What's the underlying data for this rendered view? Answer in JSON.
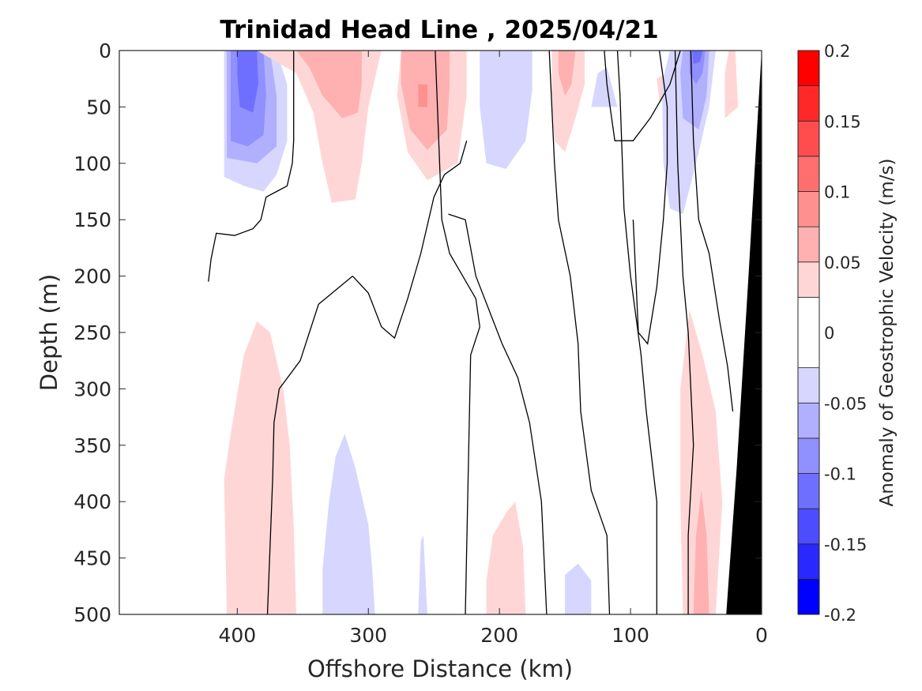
{
  "chart_data": {
    "type": "heatmap",
    "subtype": "filled-contour section",
    "title": "Trinidad Head Line , 2025/04/21",
    "xlabel": "Offshore Distance (km)",
    "ylabel": "Depth (m)",
    "xlim": [
      490,
      0
    ],
    "ylim": [
      0,
      500
    ],
    "x_reversed": true,
    "y_reversed": true,
    "xticks": [
      "400",
      "300",
      "200",
      "100",
      "0"
    ],
    "xtick_values": [
      400,
      300,
      200,
      100,
      0
    ],
    "yticks": [
      "0",
      "50",
      "100",
      "150",
      "200",
      "250",
      "300",
      "350",
      "400",
      "450",
      "500"
    ],
    "ytick_values": [
      0,
      50,
      100,
      150,
      200,
      250,
      300,
      350,
      400,
      450,
      500
    ],
    "colorbar": {
      "label": "Anomaly of Geostrophic Velocity (m/s)",
      "range": [
        -0.2,
        0.2
      ],
      "ticks": [
        "-0.2",
        "-0.15",
        "-0.1",
        "-0.05",
        "0",
        "0.05",
        "0.1",
        "0.15",
        "0.2"
      ],
      "tick_values": [
        -0.2,
        -0.15,
        -0.1,
        -0.05,
        0,
        0.05,
        0.1,
        0.15,
        0.2
      ],
      "levels": [
        -0.2,
        -0.175,
        -0.15,
        -0.125,
        -0.1,
        -0.075,
        -0.05,
        -0.025,
        0.025,
        0.05,
        0.075,
        0.1,
        0.125,
        0.15,
        0.175,
        0.2
      ],
      "colors": [
        "#0000ff",
        "#2828ff",
        "#4d4dff",
        "#6f6fff",
        "#9090ff",
        "#b0b0ff",
        "#d6d6ff",
        "#ffffff",
        "#ffd6d6",
        "#ffb0b0",
        "#ff9090",
        "#ff6f6f",
        "#ff4d4d",
        "#ff2828",
        "#ff0000"
      ]
    },
    "zero_contour_color": "#000000",
    "bathymetry_color": "#000000",
    "regions": [
      {
        "value": -0.035,
        "polygon": [
          [
            410,
            0
          ],
          [
            370,
            0
          ],
          [
            362,
            30
          ],
          [
            362,
            80
          ],
          [
            370,
            110
          ],
          [
            380,
            125
          ],
          [
            395,
            120
          ],
          [
            410,
            112
          ]
        ]
      },
      {
        "value": -0.06,
        "polygon": [
          [
            408,
            0
          ],
          [
            375,
            0
          ],
          [
            370,
            40
          ],
          [
            370,
            85
          ],
          [
            385,
            100
          ],
          [
            408,
            95
          ]
        ]
      },
      {
        "value": -0.085,
        "polygon": [
          [
            405,
            0
          ],
          [
            380,
            0
          ],
          [
            378,
            40
          ],
          [
            380,
            75
          ],
          [
            392,
            85
          ],
          [
            405,
            80
          ]
        ]
      },
      {
        "value": -0.11,
        "polygon": [
          [
            400,
            0
          ],
          [
            385,
            0
          ],
          [
            384,
            30
          ],
          [
            388,
            55
          ],
          [
            398,
            50
          ],
          [
            400,
            20
          ]
        ]
      },
      {
        "value": 0.035,
        "polygon": [
          [
            385,
            0
          ],
          [
            290,
            0
          ],
          [
            300,
            50
          ],
          [
            305,
            100
          ],
          [
            310,
            132
          ],
          [
            328,
            135
          ],
          [
            335,
            100
          ],
          [
            342,
            55
          ],
          [
            355,
            20
          ]
        ]
      },
      {
        "value": 0.06,
        "polygon": [
          [
            355,
            0
          ],
          [
            305,
            0
          ],
          [
            305,
            30
          ],
          [
            308,
            55
          ],
          [
            320,
            60
          ],
          [
            335,
            40
          ],
          [
            345,
            15
          ]
        ]
      },
      {
        "value": 0.035,
        "polygon": [
          [
            275,
            0
          ],
          [
            225,
            0
          ],
          [
            225,
            40
          ],
          [
            232,
            100
          ],
          [
            255,
            115
          ],
          [
            270,
            90
          ],
          [
            278,
            40
          ]
        ]
      },
      {
        "value": 0.06,
        "polygon": [
          [
            275,
            0
          ],
          [
            238,
            0
          ],
          [
            238,
            30
          ],
          [
            240,
            70
          ],
          [
            255,
            88
          ],
          [
            268,
            70
          ],
          [
            275,
            30
          ]
        ]
      },
      {
        "value": 0.085,
        "polygon": [
          [
            262,
            30
          ],
          [
            255,
            30
          ],
          [
            255,
            50
          ],
          [
            262,
            50
          ]
        ]
      },
      {
        "value": -0.035,
        "polygon": [
          [
            215,
            0
          ],
          [
            175,
            0
          ],
          [
            175,
            35
          ],
          [
            180,
            80
          ],
          [
            195,
            105
          ],
          [
            210,
            100
          ],
          [
            215,
            50
          ]
        ]
      },
      {
        "value": 0.035,
        "polygon": [
          [
            160,
            0
          ],
          [
            135,
            0
          ],
          [
            135,
            30
          ],
          [
            142,
            60
          ],
          [
            150,
            90
          ],
          [
            158,
            80
          ],
          [
            160,
            40
          ]
        ]
      },
      {
        "value": 0.06,
        "polygon": [
          [
            155,
            0
          ],
          [
            142,
            0
          ],
          [
            145,
            30
          ],
          [
            150,
            40
          ],
          [
            155,
            20
          ]
        ]
      },
      {
        "value": -0.035,
        "polygon": [
          [
            118,
            15
          ],
          [
            110,
            50
          ],
          [
            130,
            50
          ],
          [
            125,
            20
          ]
        ]
      },
      {
        "value": 0.035,
        "polygon": [
          [
            72,
            20
          ],
          [
            65,
            40
          ],
          [
            68,
            45
          ],
          [
            78,
            45
          ],
          [
            80,
            25
          ]
        ]
      },
      {
        "value": -0.035,
        "polygon": [
          [
            70,
            0
          ],
          [
            35,
            0
          ],
          [
            40,
            50
          ],
          [
            50,
            100
          ],
          [
            60,
            145
          ],
          [
            70,
            140
          ],
          [
            75,
            100
          ],
          [
            76,
            30
          ]
        ]
      },
      {
        "value": -0.06,
        "polygon": [
          [
            60,
            0
          ],
          [
            40,
            0
          ],
          [
            42,
            40
          ],
          [
            48,
            70
          ],
          [
            60,
            60
          ],
          [
            62,
            20
          ]
        ]
      },
      {
        "value": -0.085,
        "polygon": [
          [
            55,
            0
          ],
          [
            43,
            0
          ],
          [
            45,
            20
          ],
          [
            50,
            30
          ],
          [
            55,
            20
          ]
        ]
      },
      {
        "value": -0.11,
        "polygon": [
          [
            53,
            0
          ],
          [
            45,
            0
          ],
          [
            47,
            10
          ],
          [
            52,
            12
          ]
        ]
      },
      {
        "value": 0.035,
        "polygon": [
          [
            408,
            500
          ],
          [
            355,
            500
          ],
          [
            357,
            420
          ],
          [
            360,
            350
          ],
          [
            365,
            300
          ],
          [
            375,
            250
          ],
          [
            385,
            240
          ],
          [
            395,
            270
          ],
          [
            405,
            340
          ],
          [
            410,
            380
          ]
        ]
      },
      {
        "value": 0.035,
        "polygon": [
          [
            385,
            500
          ],
          [
            370,
            500
          ],
          [
            375,
            480
          ]
        ]
      },
      {
        "value": -0.035,
        "polygon": [
          [
            335,
            500
          ],
          [
            295,
            500
          ],
          [
            297,
            460
          ],
          [
            300,
            420
          ],
          [
            310,
            370
          ],
          [
            318,
            340
          ],
          [
            325,
            360
          ],
          [
            330,
            400
          ],
          [
            335,
            460
          ]
        ]
      },
      {
        "value": -0.035,
        "polygon": [
          [
            262,
            500
          ],
          [
            255,
            500
          ],
          [
            258,
            430
          ],
          [
            260,
            435
          ]
        ]
      },
      {
        "value": 0.035,
        "polygon": [
          [
            210,
            500
          ],
          [
            180,
            500
          ],
          [
            182,
            440
          ],
          [
            188,
            400
          ],
          [
            195,
            410
          ],
          [
            205,
            430
          ],
          [
            210,
            470
          ]
        ]
      },
      {
        "value": -0.035,
        "polygon": [
          [
            150,
            500
          ],
          [
            130,
            500
          ],
          [
            130,
            470
          ],
          [
            140,
            455
          ],
          [
            150,
            465
          ]
        ]
      },
      {
        "value": 0.035,
        "polygon": [
          [
            60,
            500
          ],
          [
            35,
            500
          ],
          [
            30,
            400
          ],
          [
            35,
            320
          ],
          [
            45,
            270
          ],
          [
            55,
            230
          ],
          [
            62,
            300
          ],
          [
            62,
            400
          ]
        ]
      },
      {
        "value": 0.06,
        "polygon": [
          [
            52,
            500
          ],
          [
            40,
            500
          ],
          [
            42,
            430
          ],
          [
            46,
            390
          ],
          [
            50,
            430
          ]
        ]
      },
      {
        "value": 0.035,
        "polygon": [
          [
            25,
            0
          ],
          [
            20,
            0
          ],
          [
            18,
            50
          ],
          [
            28,
            60
          ],
          [
            28,
            20
          ]
        ]
      }
    ],
    "zero_contours": [
      [
        [
          357,
          0
        ],
        [
          357,
          40
        ],
        [
          357,
          80
        ],
        [
          358,
          100
        ],
        [
          362,
          120
        ],
        [
          370,
          125
        ],
        [
          378,
          130
        ],
        [
          382,
          150
        ],
        [
          388,
          158
        ],
        [
          402,
          164
        ],
        [
          416,
          162
        ],
        [
          420,
          185
        ],
        [
          422,
          205
        ]
      ],
      [
        [
          312,
          200
        ],
        [
          338,
          225
        ],
        [
          352,
          275
        ],
        [
          368,
          300
        ],
        [
          372,
          330
        ],
        [
          373,
          380
        ],
        [
          375,
          440
        ],
        [
          377,
          500
        ]
      ],
      [
        [
          312,
          200
        ],
        [
          300,
          215
        ],
        [
          290,
          245
        ],
        [
          280,
          255
        ],
        [
          270,
          220
        ],
        [
          260,
          180
        ],
        [
          250,
          130
        ],
        [
          242,
          110
        ],
        [
          230,
          100
        ],
        [
          225,
          80
        ]
      ],
      [
        [
          249,
          0
        ],
        [
          244,
          150
        ],
        [
          238,
          180
        ],
        [
          228,
          200
        ],
        [
          218,
          220
        ],
        [
          215,
          245
        ],
        [
          222,
          270
        ],
        [
          226,
          500
        ]
      ],
      [
        [
          239,
          145
        ],
        [
          226,
          150
        ],
        [
          218,
          200
        ],
        [
          208,
          230
        ],
        [
          198,
          260
        ],
        [
          186,
          290
        ],
        [
          177,
          330
        ],
        [
          168,
          400
        ],
        [
          164,
          500
        ]
      ],
      [
        [
          162,
          0
        ],
        [
          158,
          100
        ],
        [
          155,
          150
        ],
        [
          146,
          200
        ],
        [
          140,
          260
        ],
        [
          138,
          320
        ],
        [
          130,
          390
        ],
        [
          118,
          430
        ],
        [
          116,
          500
        ]
      ],
      [
        [
          120,
          0
        ],
        [
          118,
          30
        ],
        [
          112,
          80
        ],
        [
          98,
          80
        ],
        [
          85,
          60
        ],
        [
          70,
          30
        ],
        [
          62,
          0
        ]
      ],
      [
        [
          110,
          0
        ],
        [
          108,
          40
        ],
        [
          105,
          140
        ],
        [
          100,
          200
        ],
        [
          92,
          270
        ],
        [
          88,
          320
        ],
        [
          80,
          400
        ],
        [
          80,
          500
        ]
      ],
      [
        [
          98,
          150
        ],
        [
          96,
          200
        ],
        [
          94,
          250
        ],
        [
          87,
          260
        ],
        [
          80,
          210
        ],
        [
          75,
          150
        ],
        [
          72,
          100
        ],
        [
          72,
          50
        ],
        [
          78,
          0
        ]
      ],
      [
        [
          66,
          0
        ],
        [
          64,
          100
        ],
        [
          60,
          200
        ],
        [
          56,
          250
        ],
        [
          52,
          350
        ],
        [
          56,
          430
        ],
        [
          56,
          500
        ]
      ],
      [
        [
          54,
          0
        ],
        [
          52,
          80
        ],
        [
          48,
          150
        ],
        [
          40,
          180
        ],
        [
          32,
          240
        ],
        [
          26,
          280
        ],
        [
          22,
          320
        ]
      ]
    ],
    "bathymetry": [
      [
        0,
        0
      ],
      [
        0,
        500
      ],
      [
        27,
        500
      ],
      [
        19,
        370
      ],
      [
        10,
        200
      ],
      [
        3,
        60
      ]
    ]
  }
}
